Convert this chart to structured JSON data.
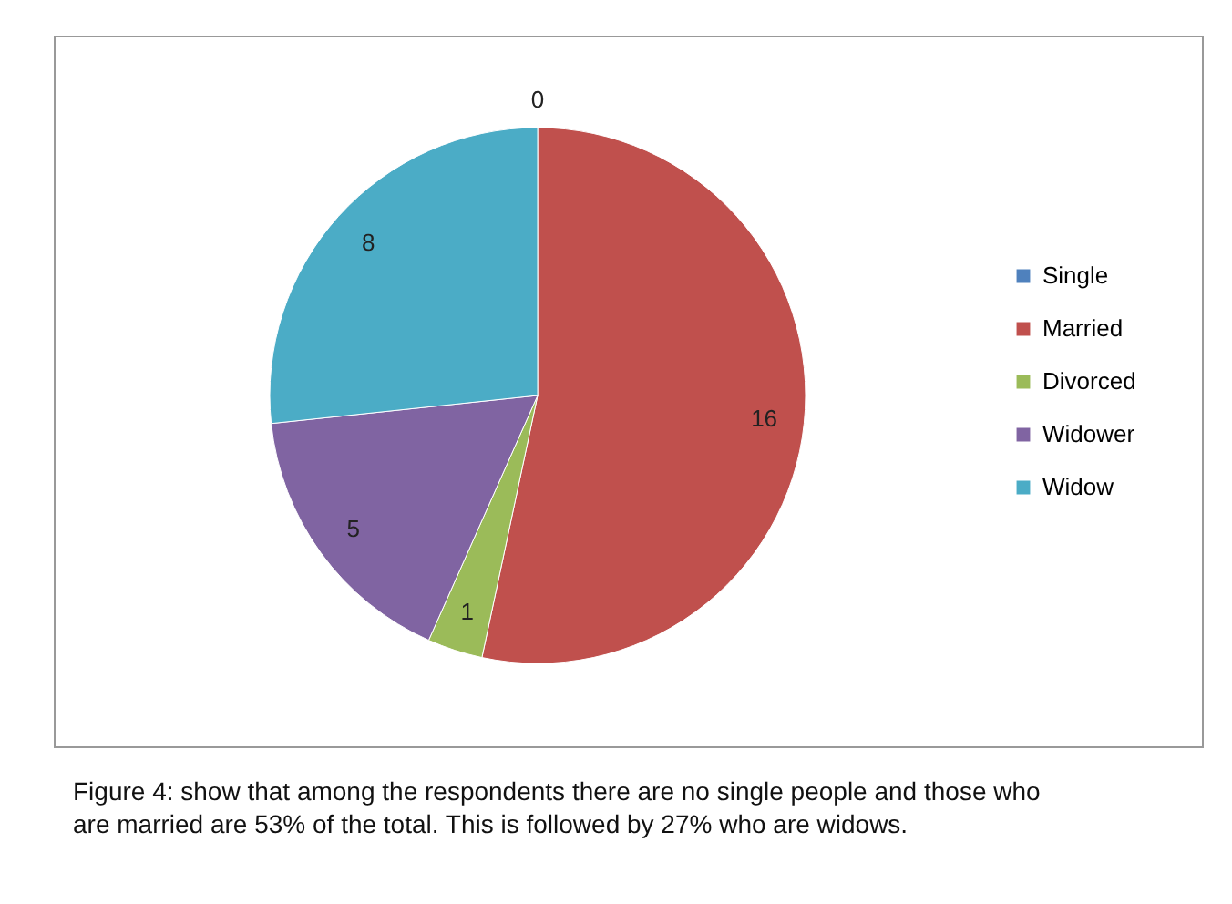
{
  "chart_data": {
    "type": "pie",
    "categories": [
      "Single",
      "Married",
      "Divorced",
      "Widower",
      "Widow"
    ],
    "values": [
      0,
      16,
      1,
      5,
      8
    ],
    "colors": [
      "#4f81bd",
      "#c0504d",
      "#9bbb59",
      "#8064a2",
      "#4bacc6"
    ],
    "value_labels": [
      "0",
      "16",
      "1",
      "5",
      "8"
    ],
    "legend": "right",
    "annotations": [
      "Figure 4: show that among the respondents there are no single people and those who are married are 53% of the total. This is followed by 27% who are widows."
    ]
  }
}
